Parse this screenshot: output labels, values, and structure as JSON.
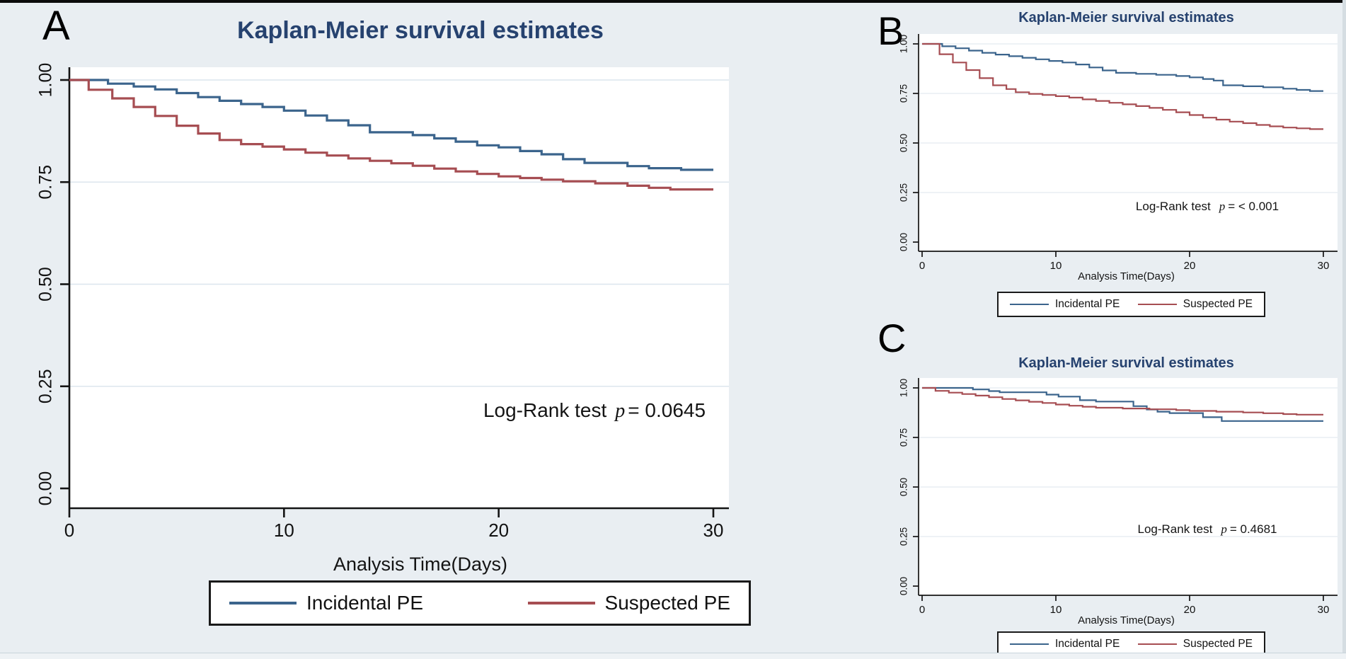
{
  "figure": {
    "background_color": "#e9eef2",
    "plot_background": "#ffffff",
    "title_color": "#26426f",
    "gridline_color": "#dce6ee",
    "series_colors": {
      "incidental_pe": "#3b648c",
      "suspected_pe": "#a64d52"
    }
  },
  "chart_data": [
    {
      "type": "line",
      "panel_label": "A",
      "title": "Kaplan-Meier survival estimates",
      "xlabel": "Analysis Time(Days)",
      "annotation": {
        "prefix": "Log-Rank test",
        "p": "p",
        "rest": "= 0.0645"
      },
      "legend": [
        "Incidental PE",
        "Suspected PE"
      ],
      "legend_position": "bottom",
      "grid": true,
      "xlim": [
        0,
        30
      ],
      "ylim": [
        0,
        1
      ],
      "x_ticks": [
        0,
        10,
        20,
        30
      ],
      "y_ticks": [
        {
          "label": "1.00",
          "value": 1.0
        },
        {
          "label": "0.75",
          "value": 0.75
        },
        {
          "label": "0.50",
          "value": 0.5
        },
        {
          "label": "0.25",
          "value": 0.25
        },
        {
          "label": "0.00",
          "value": 0.0
        }
      ],
      "series": [
        {
          "name": "Incidental PE",
          "color": "#3b648c",
          "steps": [
            [
              0,
              1.0
            ],
            [
              1.8,
              0.991
            ],
            [
              3,
              0.984
            ],
            [
              4,
              0.977
            ],
            [
              5,
              0.968
            ],
            [
              6,
              0.958
            ],
            [
              7,
              0.949
            ],
            [
              8,
              0.941
            ],
            [
              9,
              0.934
            ],
            [
              10,
              0.925
            ],
            [
              11,
              0.913
            ],
            [
              12,
              0.901
            ],
            [
              13,
              0.889
            ],
            [
              14,
              0.872
            ],
            [
              16,
              0.865
            ],
            [
              17,
              0.857
            ],
            [
              18,
              0.849
            ],
            [
              19,
              0.84
            ],
            [
              20,
              0.835
            ],
            [
              21,
              0.826
            ],
            [
              22,
              0.818
            ],
            [
              23,
              0.806
            ],
            [
              24,
              0.797
            ],
            [
              26,
              0.789
            ],
            [
              27,
              0.784
            ],
            [
              28.5,
              0.78
            ]
          ]
        },
        {
          "name": "Suspected PE",
          "color": "#a64d52",
          "steps": [
            [
              0,
              1.0
            ],
            [
              0.9,
              0.976
            ],
            [
              2,
              0.955
            ],
            [
              3,
              0.934
            ],
            [
              4,
              0.912
            ],
            [
              5,
              0.888
            ],
            [
              6,
              0.869
            ],
            [
              7,
              0.853
            ],
            [
              8,
              0.843
            ],
            [
              9,
              0.837
            ],
            [
              10,
              0.83
            ],
            [
              11,
              0.822
            ],
            [
              12,
              0.815
            ],
            [
              13,
              0.808
            ],
            [
              14,
              0.802
            ],
            [
              15,
              0.796
            ],
            [
              16,
              0.79
            ],
            [
              17,
              0.783
            ],
            [
              18,
              0.776
            ],
            [
              19,
              0.77
            ],
            [
              20,
              0.764
            ],
            [
              21,
              0.76
            ],
            [
              22,
              0.756
            ],
            [
              23,
              0.752
            ],
            [
              24.5,
              0.747
            ],
            [
              26,
              0.741
            ],
            [
              27,
              0.736
            ],
            [
              28,
              0.732
            ]
          ]
        }
      ]
    },
    {
      "type": "line",
      "panel_label": "B",
      "title": "Kaplan-Meier survival estimates",
      "xlabel": "Analysis Time(Days)",
      "annotation": {
        "prefix": "Log-Rank test",
        "p": "p",
        "rest": "= < 0.001"
      },
      "legend": [
        "Incidental PE",
        "Suspected PE"
      ],
      "legend_position": "bottom",
      "grid": true,
      "xlim": [
        0,
        30
      ],
      "ylim": [
        0,
        1
      ],
      "x_ticks": [
        0,
        10,
        20,
        30
      ],
      "y_ticks": [
        {
          "label": "1.00",
          "value": 1.0
        },
        {
          "label": "0.75",
          "value": 0.75
        },
        {
          "label": "0.50",
          "value": 0.5
        },
        {
          "label": "0.25",
          "value": 0.25
        },
        {
          "label": "0.00",
          "value": 0.0
        }
      ],
      "series": [
        {
          "name": "Incidental PE",
          "color": "#3b648c",
          "steps": [
            [
              0,
              1.0
            ],
            [
              1.5,
              0.988
            ],
            [
              2.5,
              0.978
            ],
            [
              3.5,
              0.966
            ],
            [
              4.5,
              0.955
            ],
            [
              5.5,
              0.946
            ],
            [
              6.5,
              0.938
            ],
            [
              7.5,
              0.93
            ],
            [
              8.5,
              0.922
            ],
            [
              9.5,
              0.914
            ],
            [
              10.5,
              0.906
            ],
            [
              11.5,
              0.896
            ],
            [
              12.5,
              0.881
            ],
            [
              13.5,
              0.866
            ],
            [
              14.5,
              0.854
            ],
            [
              16,
              0.849
            ],
            [
              17.5,
              0.844
            ],
            [
              19,
              0.838
            ],
            [
              20,
              0.831
            ],
            [
              21,
              0.823
            ],
            [
              21.8,
              0.815
            ],
            [
              22.5,
              0.791
            ],
            [
              24,
              0.786
            ],
            [
              25.5,
              0.781
            ],
            [
              27,
              0.774
            ],
            [
              28,
              0.768
            ],
            [
              29,
              0.762
            ]
          ]
        },
        {
          "name": "Suspected PE",
          "color": "#a64d52",
          "steps": [
            [
              0,
              1.0
            ],
            [
              1.3,
              0.948
            ],
            [
              2.3,
              0.906
            ],
            [
              3.3,
              0.868
            ],
            [
              4.3,
              0.827
            ],
            [
              5.3,
              0.791
            ],
            [
              6.3,
              0.772
            ],
            [
              7,
              0.756
            ],
            [
              8,
              0.748
            ],
            [
              9,
              0.742
            ],
            [
              10,
              0.736
            ],
            [
              11,
              0.729
            ],
            [
              12,
              0.72
            ],
            [
              13,
              0.712
            ],
            [
              14,
              0.703
            ],
            [
              15,
              0.695
            ],
            [
              16,
              0.686
            ],
            [
              17,
              0.677
            ],
            [
              18,
              0.667
            ],
            [
              19,
              0.655
            ],
            [
              20,
              0.641
            ],
            [
              21,
              0.628
            ],
            [
              22,
              0.618
            ],
            [
              23,
              0.608
            ],
            [
              24,
              0.6
            ],
            [
              25,
              0.591
            ],
            [
              26,
              0.584
            ],
            [
              27,
              0.578
            ],
            [
              28,
              0.574
            ],
            [
              29,
              0.57
            ]
          ]
        }
      ]
    },
    {
      "type": "line",
      "panel_label": "C",
      "title": "Kaplan-Meier survival estimates",
      "xlabel": "Analysis Time(Days)",
      "annotation": {
        "prefix": "Log-Rank test",
        "p": "p",
        "rest": "= 0.4681"
      },
      "legend": [
        "Incidental PE",
        "Suspected PE"
      ],
      "legend_position": "bottom",
      "grid": true,
      "xlim": [
        0,
        30
      ],
      "ylim": [
        0,
        1
      ],
      "x_ticks": [
        0,
        10,
        20,
        30
      ],
      "y_ticks": [
        {
          "label": "1.00",
          "value": 1.0
        },
        {
          "label": "0.75",
          "value": 0.75
        },
        {
          "label": "0.50",
          "value": 0.5
        },
        {
          "label": "0.25",
          "value": 0.25
        },
        {
          "label": "0.00",
          "value": 0.0
        }
      ],
      "series": [
        {
          "name": "Incidental PE",
          "color": "#3b648c",
          "steps": [
            [
              0,
              1.0
            ],
            [
              3.8,
              0.992
            ],
            [
              5,
              0.984
            ],
            [
              5.8,
              0.978
            ],
            [
              9.3,
              0.966
            ],
            [
              10.2,
              0.956
            ],
            [
              11.8,
              0.938
            ],
            [
              13,
              0.931
            ],
            [
              15.8,
              0.908
            ],
            [
              16.8,
              0.891
            ],
            [
              17.6,
              0.88
            ],
            [
              18.5,
              0.873
            ],
            [
              21,
              0.852
            ],
            [
              22.4,
              0.833
            ]
          ]
        },
        {
          "name": "Suspected PE",
          "color": "#a64d52",
          "steps": [
            [
              0,
              1.0
            ],
            [
              1,
              0.985
            ],
            [
              2,
              0.976
            ],
            [
              3,
              0.969
            ],
            [
              4,
              0.961
            ],
            [
              5,
              0.953
            ],
            [
              6,
              0.944
            ],
            [
              7,
              0.937
            ],
            [
              8,
              0.93
            ],
            [
              9,
              0.924
            ],
            [
              10,
              0.916
            ],
            [
              11,
              0.91
            ],
            [
              12,
              0.905
            ],
            [
              13,
              0.9
            ],
            [
              15,
              0.896
            ],
            [
              17,
              0.892
            ],
            [
              19,
              0.888
            ],
            [
              20,
              0.884
            ],
            [
              22,
              0.88
            ],
            [
              24,
              0.876
            ],
            [
              25.5,
              0.872
            ],
            [
              27,
              0.868
            ],
            [
              28,
              0.865
            ]
          ]
        }
      ]
    }
  ]
}
